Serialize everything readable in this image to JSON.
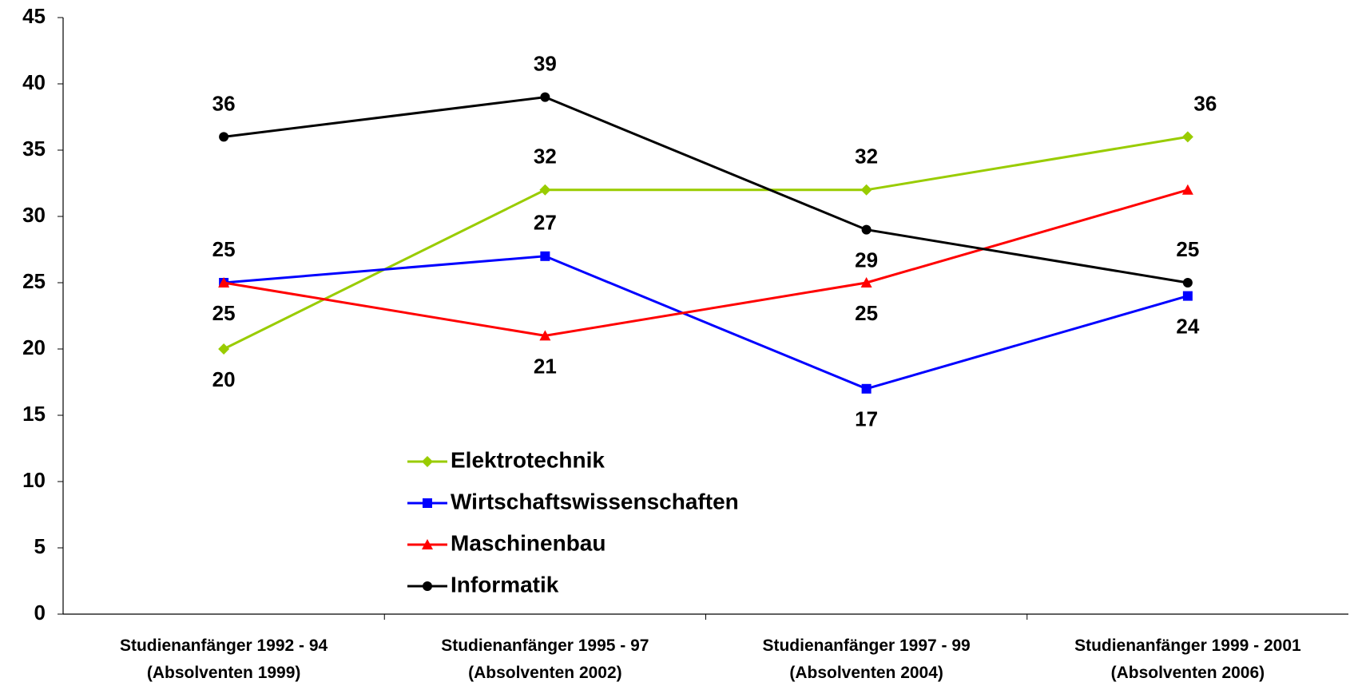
{
  "chart_data": {
    "type": "line",
    "categories": [
      "Studienanfänger 1992 - 94\n(Absolventen 1999)",
      "Studienanfänger 1995 - 97\n(Absolventen 2002)",
      "Studienanfänger 1997 - 99\n(Absolventen 2004)",
      "Studienanfänger 1999 - 2001\n(Absolventen 2006)"
    ],
    "series": [
      {
        "name": "Elektrotechnik",
        "color": "#99cc00",
        "values": [
          20,
          32,
          32,
          36
        ]
      },
      {
        "name": "Wirtschaftswissenschaften",
        "color": "#0000ff",
        "values": [
          25,
          27,
          17,
          24
        ]
      },
      {
        "name": "Maschinenbau",
        "color": "#ff0000",
        "values": [
          25,
          21,
          25,
          32
        ]
      },
      {
        "name": "Informatik",
        "color": "#000000",
        "values": [
          36,
          39,
          29,
          25
        ]
      }
    ],
    "ylim": [
      0,
      45
    ],
    "yticks": [
      0,
      5,
      10,
      15,
      20,
      25,
      30,
      35,
      40,
      45
    ],
    "grid": false
  }
}
